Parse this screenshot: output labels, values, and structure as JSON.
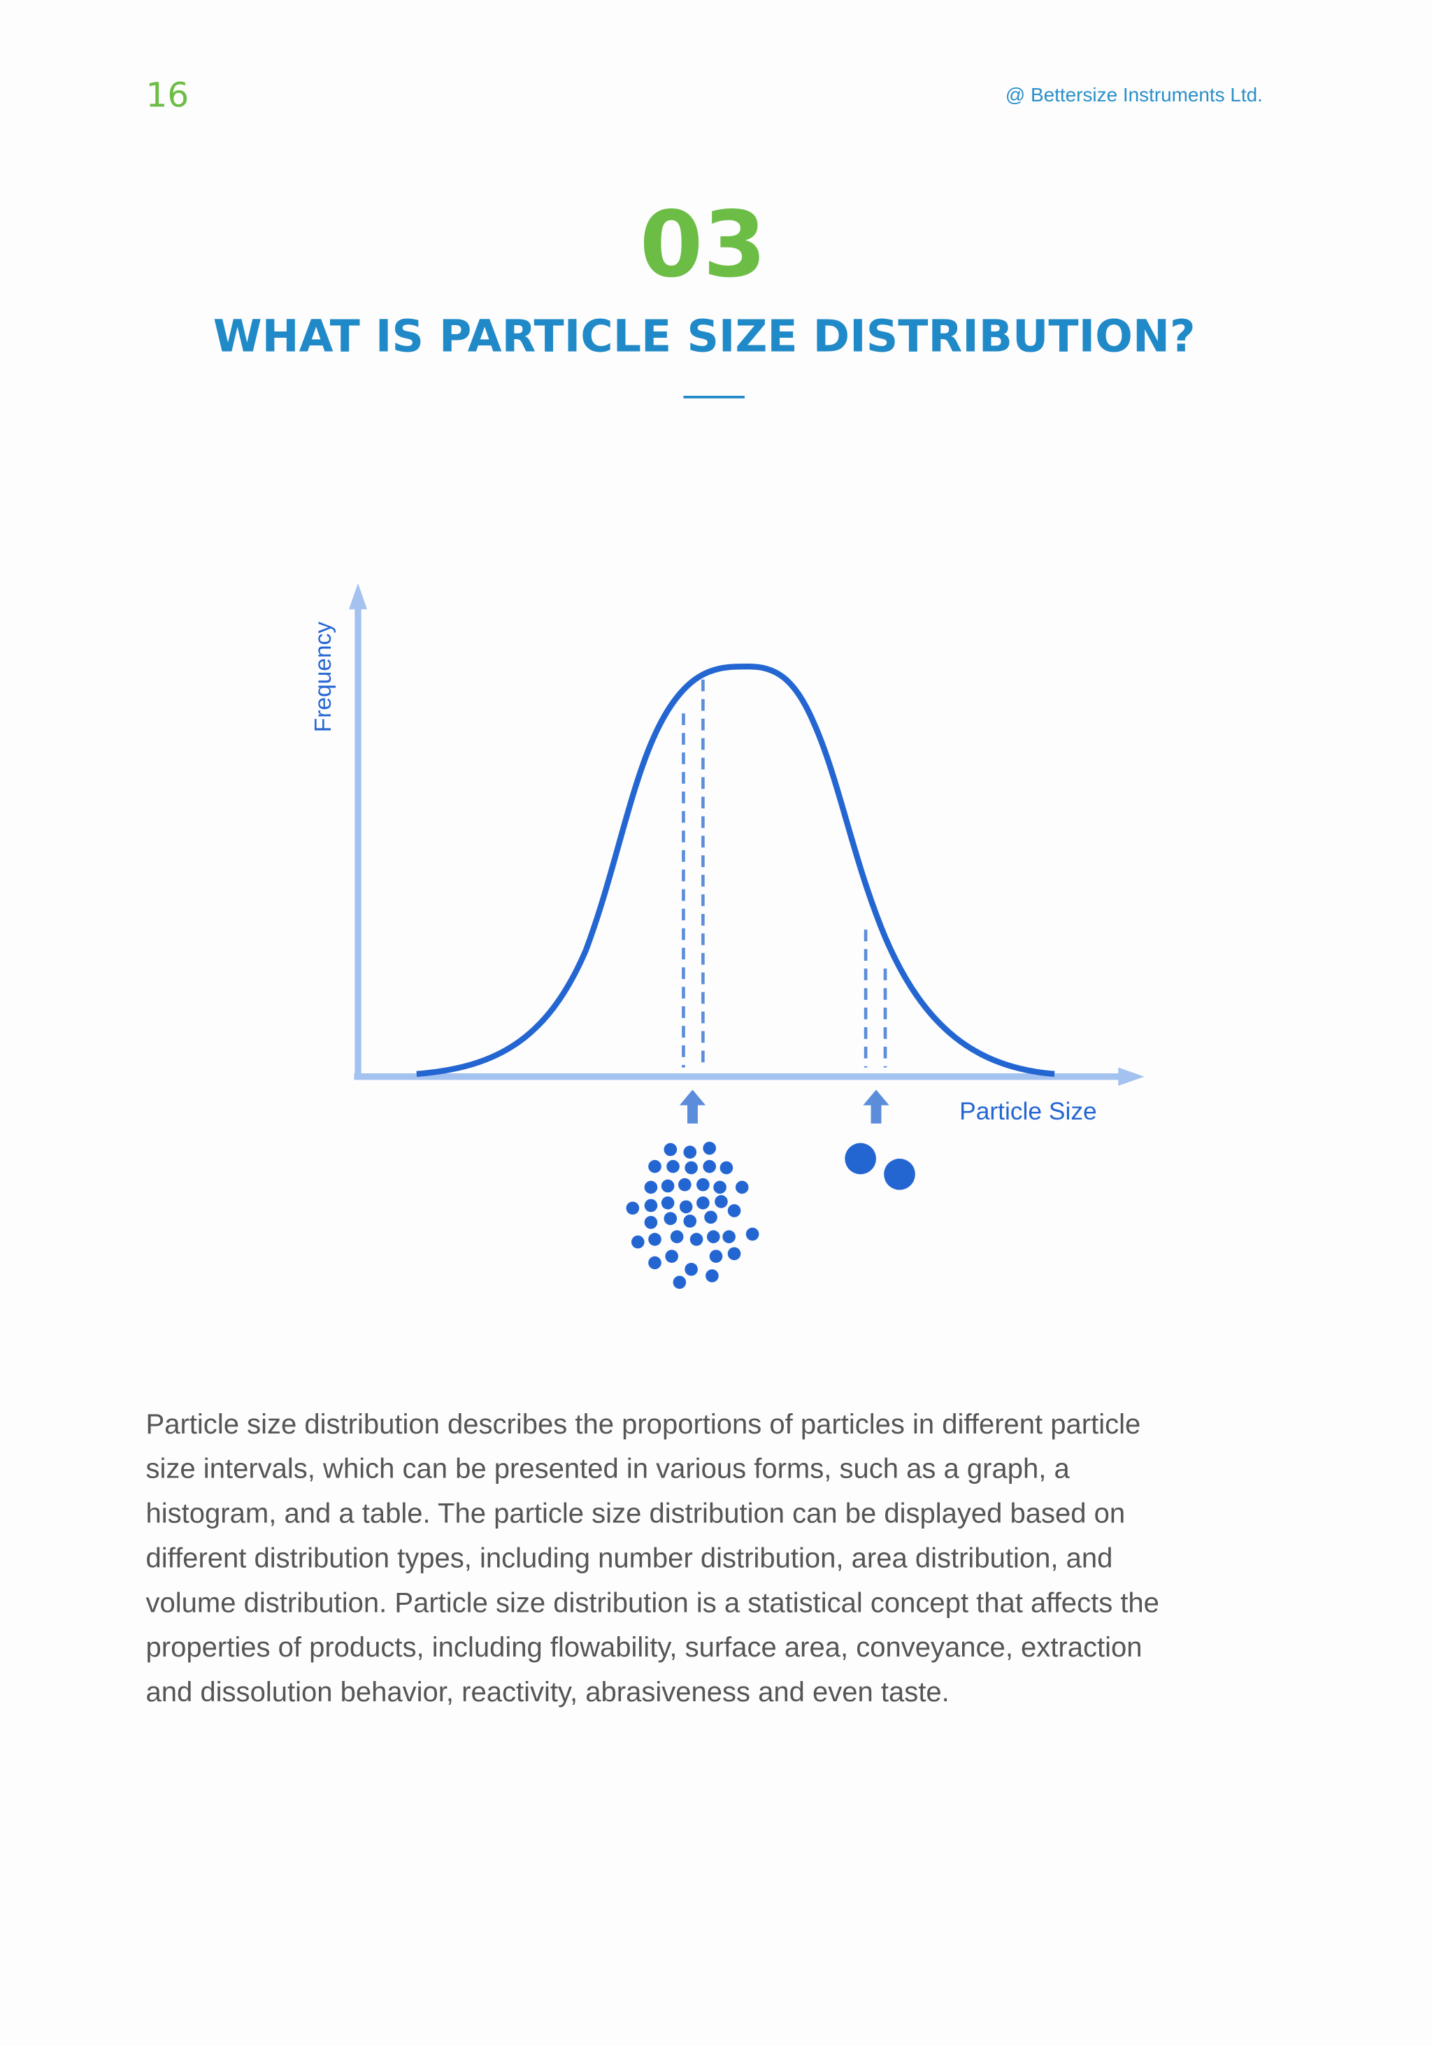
{
  "header": {
    "page_number": "16",
    "company": "@ Bettersize Instruments Ltd."
  },
  "section": {
    "number": "03",
    "title": "WHAT IS PARTICLE SIZE DISTRIBUTION?"
  },
  "diagram": {
    "y_label": "Frequency",
    "x_label": "Particle Size"
  },
  "body": {
    "lines": [
      "Particle size distribution describes the proportions of particles in different particle",
      "size intervals, which can be presented in various forms, such as a graph, a",
      "histogram, and a table. The particle size distribution can be displayed based on",
      "different distribution types, including number distribution, area distribution, and",
      "volume distribution. Particle size distribution is a statistical concept that affects the",
      "properties of products, including flowability, surface area, conveyance, extraction",
      "and dissolution behavior, reactivity, abrasiveness and even taste."
    ]
  }
}
